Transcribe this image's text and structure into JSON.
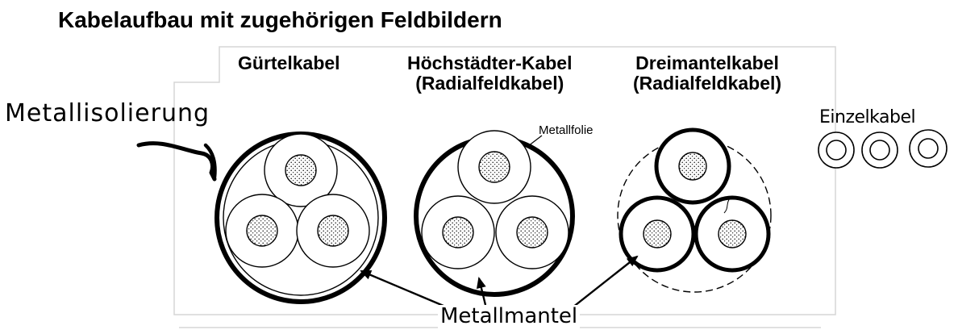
{
  "title": "Kabelaufbau mit zugehörigen Feldbildern",
  "cables": [
    {
      "line1": "Gürtelkabel",
      "line2": ""
    },
    {
      "line1": "Höchstädter-Kabel",
      "line2": "(Radialfeldkabel)"
    },
    {
      "line1": "Dreimantelkabel",
      "line2": "(Radialfeldkabel)"
    }
  ],
  "annotations": {
    "metallisolierung": "Metallisolierung",
    "einzelkabel": "Einzelkabel",
    "metallfolie": "Metallfolie",
    "metallmantel": "Metallmantel"
  }
}
